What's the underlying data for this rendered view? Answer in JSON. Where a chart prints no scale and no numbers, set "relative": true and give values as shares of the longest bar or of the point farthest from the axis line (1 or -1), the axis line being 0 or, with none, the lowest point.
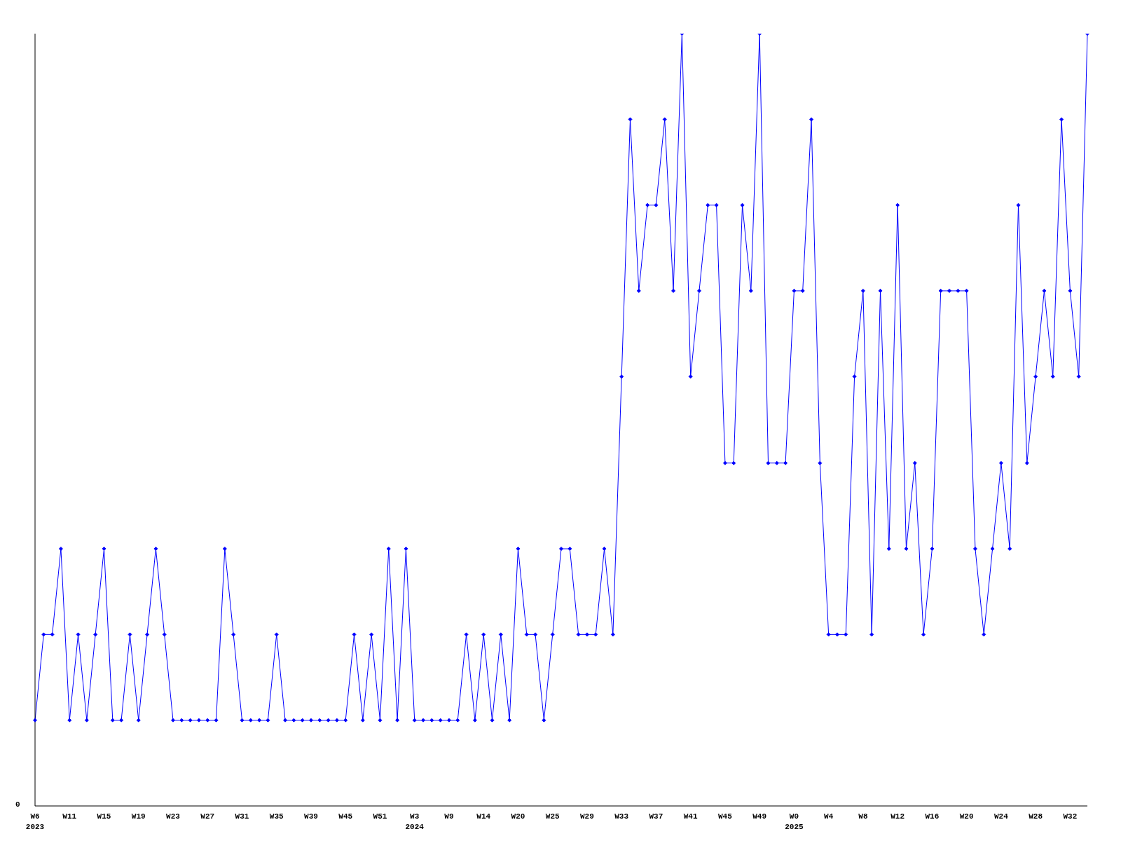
{
  "chart_data": {
    "type": "line",
    "relative": true,
    "categories": [
      "W6\n2023",
      null,
      null,
      null,
      "W11",
      null,
      null,
      null,
      "W15",
      null,
      null,
      null,
      "W19",
      null,
      null,
      null,
      "W23",
      null,
      null,
      null,
      "W27",
      null,
      null,
      null,
      "W31",
      null,
      null,
      null,
      "W35",
      null,
      null,
      null,
      "W39",
      null,
      null,
      null,
      "W45",
      null,
      null,
      null,
      "W51",
      null,
      null,
      null,
      "W3\n2024",
      null,
      null,
      null,
      "W9",
      null,
      null,
      null,
      "W14",
      null,
      null,
      null,
      "W20",
      null,
      null,
      null,
      "W25",
      null,
      null,
      null,
      "W29",
      null,
      null,
      null,
      "W33",
      null,
      null,
      null,
      "W37",
      null,
      null,
      null,
      "W41",
      null,
      null,
      null,
      "W45",
      null,
      null,
      null,
      "W49",
      null,
      null,
      null,
      "W0\n2025",
      null,
      null,
      null,
      "W4",
      null,
      null,
      null,
      "W8",
      null,
      null,
      null,
      "W12",
      null,
      null,
      null,
      "W16",
      null,
      null,
      null,
      "W20",
      null,
      null,
      null,
      "W24",
      null,
      null,
      null,
      "W28",
      null,
      null,
      null,
      "W32",
      null,
      null
    ],
    "series": [
      {
        "color": "#0000ff",
        "values": [
          0.111,
          0.222,
          0.222,
          0.333,
          0.111,
          0.222,
          0.111,
          0.222,
          0.333,
          0.111,
          0.111,
          0.222,
          0.111,
          0.222,
          0.333,
          0.222,
          0.111,
          0.111,
          0.111,
          0.111,
          0.111,
          0.111,
          0.333,
          0.222,
          0.111,
          0.111,
          0.111,
          0.111,
          0.222,
          0.111,
          0.111,
          0.111,
          0.111,
          0.111,
          0.111,
          0.111,
          0.111,
          0.222,
          0.111,
          0.222,
          0.111,
          0.333,
          0.111,
          0.333,
          0.111,
          0.111,
          0.111,
          0.111,
          0.111,
          0.111,
          0.222,
          0.111,
          0.222,
          0.111,
          0.222,
          0.111,
          0.333,
          0.222,
          0.222,
          0.111,
          0.222,
          0.333,
          0.333,
          0.222,
          0.222,
          0.222,
          0.333,
          0.222,
          0.556,
          0.889,
          0.667,
          0.778,
          0.778,
          0.889,
          0.667,
          1,
          0.556,
          0.667,
          0.778,
          0.778,
          0.444,
          0.444,
          0.778,
          0.667,
          1,
          0.444,
          0.444,
          0.444,
          0.667,
          0.667,
          0.889,
          0.444,
          0.222,
          0.222,
          0.222,
          0.556,
          0.667,
          0.222,
          0.667,
          0.333,
          0.778,
          0.333,
          0.444,
          0.222,
          0.333,
          0.667,
          0.667,
          0.667,
          0.667,
          0.333,
          0.222,
          0.333,
          0.444,
          0.333,
          0.778,
          0.444,
          0.556,
          0.667,
          0.556,
          0.889,
          0.667,
          0.556,
          1
        ]
      }
    ],
    "annotations": [
      "0"
    ],
    "marker": "diamond",
    "line_style": "solid",
    "grid": false,
    "legend": false
  }
}
